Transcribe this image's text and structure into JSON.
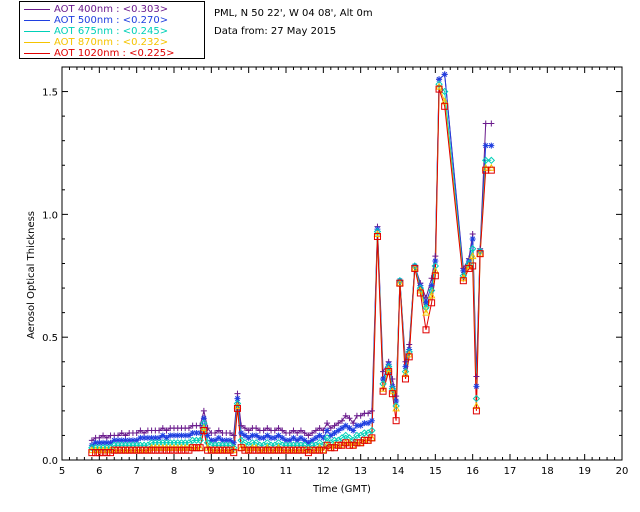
{
  "header": {
    "location": "PML, N 50 22', W 04 08', Alt 0m",
    "date_line": "Data from: 27 May 2015"
  },
  "legend": [
    {
      "label": "AOT  400nm : <0.303>",
      "color": "#6a1b8c"
    },
    {
      "label": "AOT  500nm : <0.270>",
      "color": "#1f3fe0"
    },
    {
      "label": "AOT  675nm : <0.245>",
      "color": "#00d0b8"
    },
    {
      "label": "AOT  870nm : <0.232>",
      "color": "#f5c400"
    },
    {
      "label": "AOT 1020nm : <0.225>",
      "color": "#e00000"
    }
  ],
  "chart_data": {
    "type": "line",
    "xlabel": "Time (GMT)",
    "ylabel": "Aerosol Optical Thickness",
    "xlim": [
      5,
      20
    ],
    "ylim": [
      0,
      1.6
    ],
    "xticks": [
      "5",
      "6",
      "7",
      "8",
      "9",
      "10",
      "11",
      "12",
      "13",
      "14",
      "15",
      "16",
      "17",
      "18",
      "19",
      "20"
    ],
    "yticks": [
      "0.0",
      "0.5",
      "1.0",
      "1.5"
    ],
    "x": [
      5.8,
      5.9,
      6.0,
      6.1,
      6.2,
      6.3,
      6.4,
      6.5,
      6.6,
      6.7,
      6.8,
      6.9,
      7.0,
      7.1,
      7.2,
      7.3,
      7.4,
      7.5,
      7.6,
      7.7,
      7.8,
      7.9,
      8.0,
      8.1,
      8.2,
      8.3,
      8.4,
      8.5,
      8.6,
      8.7,
      8.8,
      8.9,
      9.0,
      9.1,
      9.2,
      9.3,
      9.4,
      9.5,
      9.6,
      9.7,
      9.8,
      9.9,
      10.0,
      10.1,
      10.2,
      10.3,
      10.4,
      10.5,
      10.6,
      10.7,
      10.8,
      10.9,
      11.0,
      11.1,
      11.2,
      11.3,
      11.4,
      11.5,
      11.6,
      11.7,
      11.8,
      11.9,
      12.0,
      12.1,
      12.2,
      12.3,
      12.4,
      12.5,
      12.6,
      12.7,
      12.8,
      12.9,
      13.0,
      13.1,
      13.2,
      13.3,
      13.45,
      13.6,
      13.75,
      13.85,
      13.95,
      14.05,
      14.2,
      14.3,
      14.45,
      14.6,
      14.75,
      14.9,
      15.0,
      15.1,
      15.25,
      15.75,
      15.9,
      16.0,
      16.1,
      16.2,
      16.35,
      16.5
    ],
    "series": [
      {
        "name": "AOT  400nm",
        "color": "#6a1b8c",
        "marker": "plus",
        "values": [
          0.08,
          0.09,
          0.09,
          0.1,
          0.09,
          0.1,
          0.1,
          0.1,
          0.11,
          0.1,
          0.11,
          0.11,
          0.11,
          0.12,
          0.11,
          0.12,
          0.12,
          0.12,
          0.12,
          0.13,
          0.12,
          0.13,
          0.13,
          0.13,
          0.13,
          0.13,
          0.13,
          0.14,
          0.14,
          0.14,
          0.2,
          0.13,
          0.11,
          0.11,
          0.12,
          0.11,
          0.11,
          0.11,
          0.1,
          0.27,
          0.14,
          0.13,
          0.12,
          0.13,
          0.13,
          0.12,
          0.12,
          0.13,
          0.12,
          0.12,
          0.13,
          0.12,
          0.11,
          0.11,
          0.12,
          0.11,
          0.12,
          0.11,
          0.1,
          0.11,
          0.12,
          0.13,
          0.12,
          0.15,
          0.13,
          0.14,
          0.15,
          0.16,
          0.18,
          0.17,
          0.15,
          0.18,
          0.18,
          0.19,
          0.19,
          0.2,
          0.95,
          0.36,
          0.4,
          0.33,
          0.26,
          0.73,
          0.4,
          0.47,
          0.79,
          0.72,
          0.66,
          0.74,
          0.83,
          1.55,
          1.57,
          0.78,
          0.82,
          0.92,
          0.34,
          0.86,
          1.37,
          1.37
        ]
      },
      {
        "name": "AOT  500nm",
        "color": "#1f3fe0",
        "marker": "asterisk",
        "values": [
          0.06,
          0.07,
          0.07,
          0.07,
          0.07,
          0.07,
          0.08,
          0.08,
          0.08,
          0.08,
          0.08,
          0.08,
          0.08,
          0.09,
          0.09,
          0.09,
          0.09,
          0.09,
          0.09,
          0.1,
          0.09,
          0.1,
          0.1,
          0.1,
          0.1,
          0.1,
          0.1,
          0.11,
          0.11,
          0.11,
          0.17,
          0.1,
          0.08,
          0.08,
          0.09,
          0.08,
          0.08,
          0.08,
          0.07,
          0.25,
          0.11,
          0.1,
          0.09,
          0.1,
          0.1,
          0.09,
          0.09,
          0.1,
          0.09,
          0.09,
          0.1,
          0.09,
          0.08,
          0.08,
          0.09,
          0.08,
          0.09,
          0.08,
          0.07,
          0.08,
          0.09,
          0.1,
          0.09,
          0.12,
          0.1,
          0.11,
          0.12,
          0.13,
          0.14,
          0.13,
          0.12,
          0.14,
          0.14,
          0.15,
          0.15,
          0.16,
          0.94,
          0.33,
          0.39,
          0.3,
          0.24,
          0.73,
          0.38,
          0.45,
          0.79,
          0.71,
          0.64,
          0.71,
          0.81,
          1.55,
          1.57,
          0.77,
          0.81,
          0.9,
          0.3,
          0.85,
          1.28,
          1.28
        ]
      },
      {
        "name": "AOT  675nm",
        "color": "#00d0b8",
        "marker": "diamond",
        "values": [
          0.05,
          0.05,
          0.05,
          0.05,
          0.05,
          0.05,
          0.06,
          0.06,
          0.06,
          0.06,
          0.06,
          0.06,
          0.06,
          0.06,
          0.06,
          0.06,
          0.07,
          0.07,
          0.07,
          0.07,
          0.07,
          0.07,
          0.07,
          0.07,
          0.07,
          0.07,
          0.07,
          0.08,
          0.08,
          0.08,
          0.15,
          0.07,
          0.06,
          0.06,
          0.06,
          0.06,
          0.06,
          0.06,
          0.05,
          0.23,
          0.08,
          0.07,
          0.06,
          0.07,
          0.07,
          0.06,
          0.06,
          0.07,
          0.06,
          0.06,
          0.07,
          0.06,
          0.06,
          0.06,
          0.06,
          0.06,
          0.06,
          0.06,
          0.05,
          0.06,
          0.06,
          0.07,
          0.06,
          0.09,
          0.07,
          0.08,
          0.08,
          0.09,
          0.1,
          0.09,
          0.08,
          0.1,
          0.1,
          0.11,
          0.11,
          0.12,
          0.93,
          0.31,
          0.38,
          0.29,
          0.22,
          0.73,
          0.36,
          0.44,
          0.79,
          0.7,
          0.62,
          0.69,
          0.79,
          1.53,
          1.5,
          0.75,
          0.8,
          0.86,
          0.25,
          0.85,
          1.22,
          1.22
        ]
      },
      {
        "name": "AOT  870nm",
        "color": "#f5c400",
        "marker": "triangle",
        "values": [
          0.04,
          0.04,
          0.04,
          0.04,
          0.04,
          0.04,
          0.04,
          0.04,
          0.04,
          0.04,
          0.04,
          0.04,
          0.04,
          0.04,
          0.04,
          0.04,
          0.05,
          0.05,
          0.05,
          0.05,
          0.05,
          0.05,
          0.05,
          0.05,
          0.05,
          0.05,
          0.05,
          0.05,
          0.05,
          0.05,
          0.13,
          0.05,
          0.04,
          0.04,
          0.04,
          0.04,
          0.04,
          0.04,
          0.04,
          0.22,
          0.05,
          0.05,
          0.04,
          0.05,
          0.05,
          0.04,
          0.04,
          0.05,
          0.04,
          0.04,
          0.05,
          0.04,
          0.04,
          0.04,
          0.04,
          0.04,
          0.04,
          0.04,
          0.04,
          0.04,
          0.04,
          0.05,
          0.04,
          0.06,
          0.05,
          0.06,
          0.06,
          0.06,
          0.07,
          0.07,
          0.06,
          0.07,
          0.07,
          0.08,
          0.08,
          0.09,
          0.92,
          0.29,
          0.37,
          0.28,
          0.21,
          0.72,
          0.35,
          0.43,
          0.78,
          0.69,
          0.6,
          0.67,
          0.77,
          1.52,
          1.46,
          0.74,
          0.79,
          0.83,
          0.22,
          0.84,
          1.19,
          1.19
        ]
      },
      {
        "name": "AOT 1020nm",
        "color": "#e00000",
        "marker": "square",
        "values": [
          0.03,
          0.03,
          0.03,
          0.03,
          0.03,
          0.03,
          0.04,
          0.04,
          0.04,
          0.04,
          0.04,
          0.04,
          0.04,
          0.04,
          0.04,
          0.04,
          0.04,
          0.04,
          0.04,
          0.04,
          0.04,
          0.04,
          0.04,
          0.04,
          0.04,
          0.04,
          0.04,
          0.05,
          0.05,
          0.05,
          0.12,
          0.04,
          0.04,
          0.04,
          0.04,
          0.04,
          0.04,
          0.04,
          0.03,
          0.21,
          0.05,
          0.04,
          0.04,
          0.04,
          0.04,
          0.04,
          0.04,
          0.04,
          0.04,
          0.04,
          0.04,
          0.04,
          0.04,
          0.04,
          0.04,
          0.04,
          0.04,
          0.04,
          0.03,
          0.04,
          0.04,
          0.04,
          0.04,
          0.06,
          0.05,
          0.05,
          0.06,
          0.06,
          0.07,
          0.06,
          0.06,
          0.07,
          0.07,
          0.08,
          0.08,
          0.09,
          0.91,
          0.28,
          0.36,
          0.27,
          0.16,
          0.72,
          0.33,
          0.42,
          0.78,
          0.68,
          0.53,
          0.64,
          0.75,
          1.51,
          1.44,
          0.73,
          0.78,
          0.79,
          0.2,
          0.84,
          1.18,
          1.18
        ]
      }
    ]
  }
}
